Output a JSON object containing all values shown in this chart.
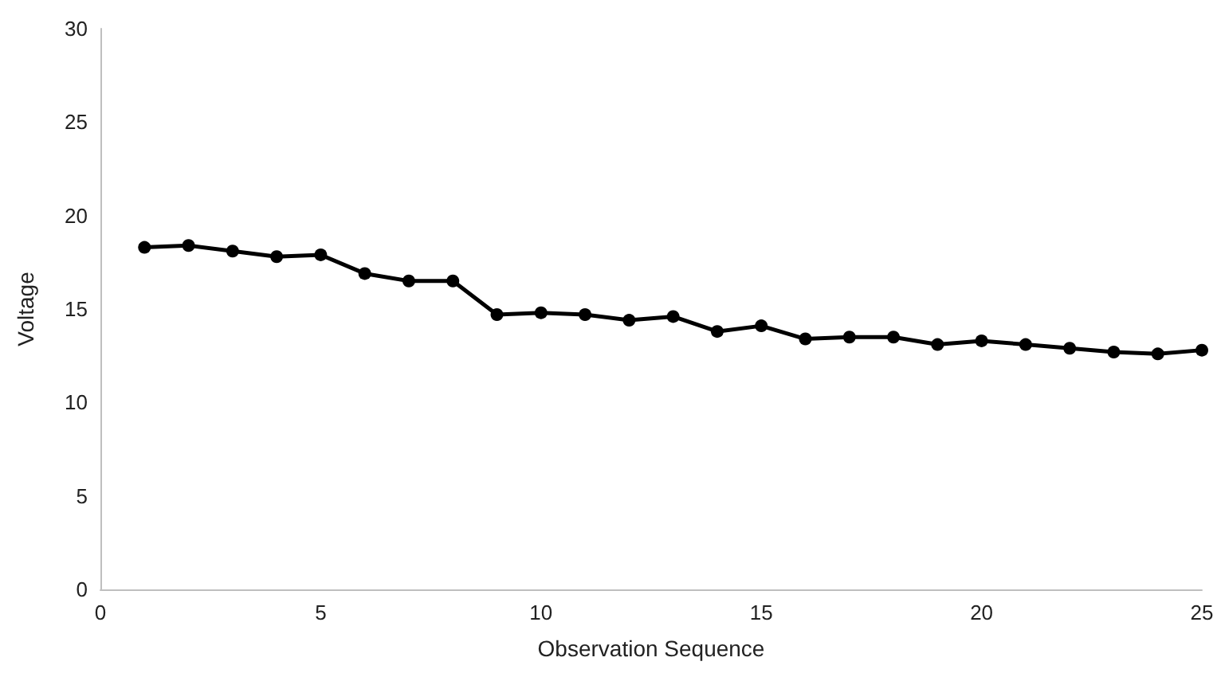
{
  "chart_data": {
    "type": "line",
    "xlabel": "Observation Sequence",
    "ylabel": "Voltage",
    "x": [
      1,
      2,
      3,
      4,
      5,
      6,
      7,
      8,
      9,
      10,
      11,
      12,
      13,
      14,
      15,
      16,
      17,
      18,
      19,
      20,
      21,
      22,
      23,
      24,
      25
    ],
    "series": [
      {
        "color": "#000000",
        "values": [
          18.3,
          18.4,
          18.1,
          17.8,
          17.9,
          16.9,
          16.5,
          16.5,
          14.7,
          14.8,
          14.7,
          14.4,
          14.6,
          13.8,
          14.1,
          13.4,
          13.5,
          13.5,
          13.1,
          13.3,
          13.1,
          12.9,
          12.7,
          12.6,
          12.8
        ]
      }
    ],
    "xlim": [
      0,
      25
    ],
    "xticks": [
      0,
      5,
      10,
      15,
      20,
      25
    ],
    "ylim": [
      0,
      30
    ],
    "yticks": [
      0,
      5,
      10,
      15,
      20,
      25,
      30
    ],
    "grid": false,
    "marker": "circle",
    "line_style": "solid"
  }
}
